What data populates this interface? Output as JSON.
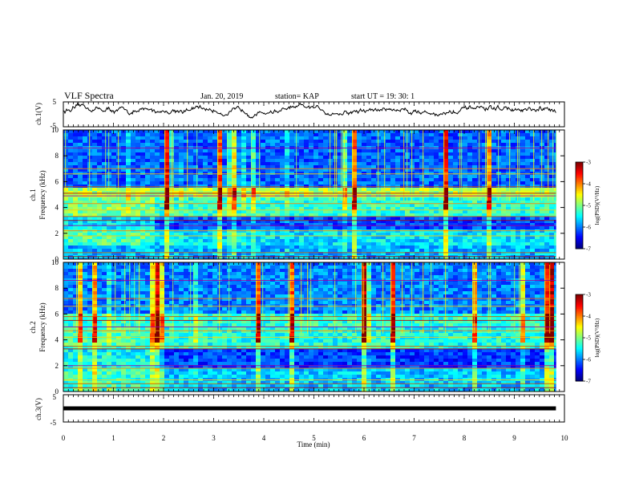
{
  "header": {
    "title": "VLF Spectra",
    "date": "Jan. 20, 2019",
    "station": "station= KAP",
    "start": "start  UT =   19: 30: 1"
  },
  "chart_data": [
    {
      "type": "line",
      "name": "ch1-voltage",
      "ylabel": "ch.1(V)",
      "ylim": [
        -5,
        5
      ],
      "yticks": [
        "5",
        "-5"
      ],
      "xlim": [
        0,
        10
      ],
      "x_end": 9.83,
      "baseline": 1.5,
      "amplitude": 2.5
    },
    {
      "type": "heatmap",
      "name": "ch1-spectrogram",
      "ylabel_line1": "ch.1",
      "ylabel_line2": "Frequency (kHz)",
      "ylim": [
        0,
        10
      ],
      "yticks": [
        "0",
        "2",
        "4",
        "6",
        "8",
        "10"
      ],
      "xlim": [
        0,
        10
      ],
      "x_end": 9.83,
      "colorbar": {
        "label": "log(PSD)(V²/Hz)",
        "range": [
          -7,
          -3
        ],
        "ticks": [
          "-3",
          "-4",
          "-5",
          "-6",
          "-7"
        ]
      }
    },
    {
      "type": "heatmap",
      "name": "ch2-spectrogram",
      "ylabel_line1": "ch.2",
      "ylabel_line2": "Frequency (kHz)",
      "ylim": [
        0,
        10
      ],
      "yticks": [
        "0",
        "2",
        "4",
        "6",
        "8",
        "10"
      ],
      "xlim": [
        0,
        10
      ],
      "x_end": 9.83,
      "colorbar": {
        "label": "log(PSD)(V²/Hz)",
        "range": [
          -7,
          -3
        ],
        "ticks": [
          "-3",
          "-4",
          "-5",
          "-6",
          "-7"
        ]
      }
    },
    {
      "type": "line",
      "name": "ch3-voltage",
      "ylabel": "ch.3(V)",
      "ylim": [
        -5,
        5
      ],
      "yticks": [
        "5",
        "-5"
      ],
      "xlim": [
        0,
        10
      ],
      "x_end": 9.83,
      "constant": 0
    }
  ],
  "xaxis": {
    "label": "Time (min)",
    "ticks": [
      "0",
      "1",
      "2",
      "3",
      "4",
      "5",
      "6",
      "7",
      "8",
      "9",
      "10"
    ]
  }
}
